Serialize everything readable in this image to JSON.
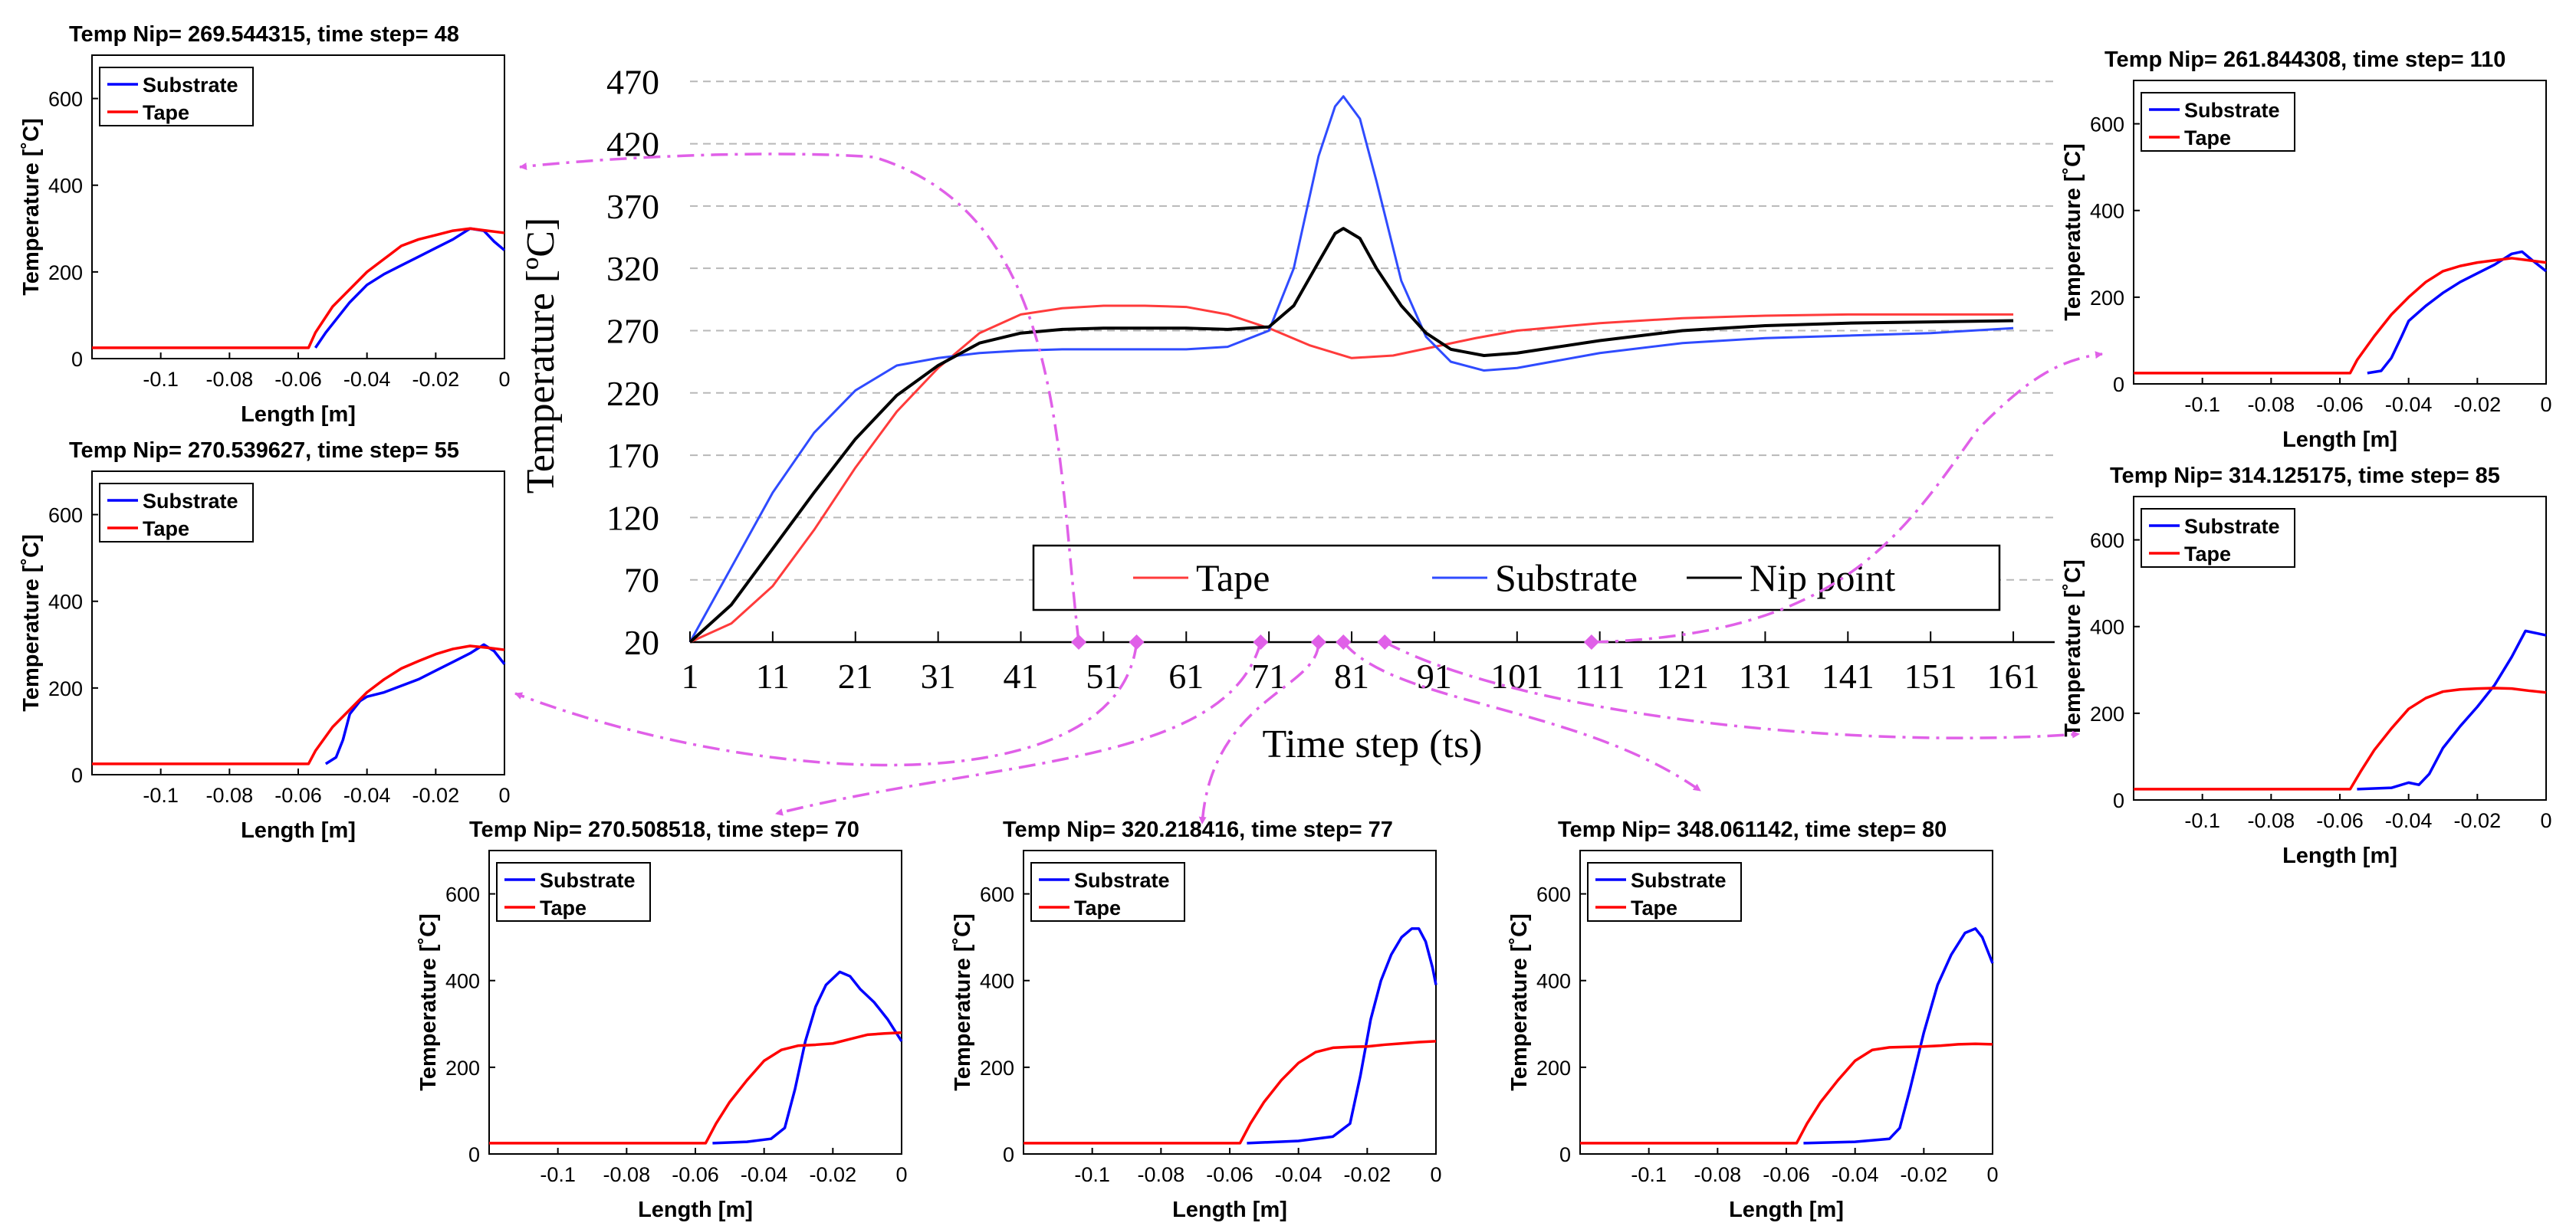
{
  "chart_data": [
    {
      "id": "main",
      "type": "line",
      "xlabel": "Time step (ts)",
      "ylabel": "Temperature [ºC]",
      "xlim": [
        1,
        166
      ],
      "ylim": [
        20,
        480
      ],
      "xticks": [
        1,
        11,
        21,
        31,
        41,
        51,
        61,
        71,
        81,
        91,
        101,
        111,
        121,
        131,
        141,
        151,
        161
      ],
      "yticks": [
        20,
        70,
        120,
        170,
        220,
        270,
        320,
        370,
        420,
        470
      ],
      "grid": "horizontal dashed",
      "legend": "bottom-center, single row",
      "series": [
        {
          "name": "Tape",
          "color": "#ff3b3b",
          "x": [
            1,
            6,
            11,
            16,
            21,
            26,
            31,
            36,
            41,
            46,
            51,
            56,
            61,
            66,
            71,
            76,
            81,
            86,
            91,
            96,
            101,
            111,
            121,
            131,
            141,
            151,
            161
          ],
          "y": [
            20,
            35,
            65,
            110,
            160,
            205,
            240,
            268,
            283,
            288,
            290,
            290,
            289,
            283,
            272,
            258,
            248,
            250,
            257,
            264,
            270,
            276,
            280,
            282,
            283,
            283,
            283
          ]
        },
        {
          "name": "Substrate",
          "color": "#2f4bff",
          "x": [
            1,
            6,
            11,
            16,
            21,
            26,
            31,
            36,
            41,
            46,
            51,
            56,
            61,
            66,
            71,
            74,
            77,
            79,
            80,
            82,
            84,
            87,
            90,
            93,
            97,
            101,
            111,
            121,
            131,
            141,
            151,
            161
          ],
          "y": [
            20,
            80,
            140,
            188,
            222,
            242,
            248,
            252,
            254,
            255,
            255,
            255,
            255,
            257,
            270,
            320,
            410,
            450,
            458,
            440,
            390,
            310,
            265,
            245,
            238,
            240,
            252,
            260,
            264,
            266,
            268,
            272
          ]
        },
        {
          "name": "Nip point",
          "color": "#000000",
          "x": [
            1,
            6,
            11,
            16,
            21,
            26,
            31,
            36,
            41,
            46,
            51,
            56,
            61,
            66,
            71,
            74,
            77,
            79,
            80,
            82,
            84,
            87,
            90,
            93,
            97,
            101,
            111,
            121,
            131,
            141,
            151,
            161
          ],
          "y": [
            20,
            50,
            95,
            140,
            183,
            218,
            242,
            260,
            268,
            271,
            272,
            272,
            272,
            271,
            273,
            290,
            325,
            348,
            352,
            344,
            320,
            290,
            268,
            255,
            250,
            252,
            262,
            270,
            274,
            276,
            277,
            278
          ]
        }
      ],
      "markers_x": [
        48,
        55,
        70,
        77,
        80,
        85,
        110
      ]
    },
    {
      "id": "ts48",
      "type": "line",
      "title": "Temp Nip= 269.544315, time step= 48",
      "xlabel": "Length [m]",
      "ylabel": "Temperature [˚C]",
      "xlim": [
        -0.12,
        0
      ],
      "ylim": [
        0,
        700
      ],
      "xticks": [
        -0.1,
        -0.08,
        -0.06,
        -0.04,
        -0.02,
        0
      ],
      "xticklabels": [
        "-0.1",
        "-0.08",
        "-0.06",
        "-0.04",
        "-0.02",
        "0"
      ],
      "yticks": [
        0,
        200,
        400,
        600
      ],
      "legend": "top-left",
      "series": [
        {
          "name": "Substrate",
          "color": "#0000ff",
          "x": [
            -0.055,
            -0.052,
            -0.048,
            -0.045,
            -0.04,
            -0.035,
            -0.03,
            -0.025,
            -0.02,
            -0.015,
            -0.01,
            -0.006,
            -0.003,
            0
          ],
          "y": [
            25,
            60,
            100,
            130,
            170,
            195,
            215,
            235,
            255,
            275,
            300,
            295,
            270,
            250
          ]
        },
        {
          "name": "Tape",
          "color": "#ff0000",
          "x": [
            -0.12,
            -0.057,
            -0.055,
            -0.05,
            -0.045,
            -0.04,
            -0.035,
            -0.03,
            -0.025,
            -0.02,
            -0.015,
            -0.01,
            -0.005,
            0
          ],
          "y": [
            25,
            25,
            60,
            120,
            160,
            200,
            230,
            260,
            275,
            285,
            295,
            300,
            295,
            290
          ]
        }
      ]
    },
    {
      "id": "ts55",
      "type": "line",
      "title": "Temp Nip= 270.539627, time step= 55",
      "xlabel": "Length [m]",
      "ylabel": "Temperature [˚C]",
      "xlim": [
        -0.12,
        0
      ],
      "ylim": [
        0,
        700
      ],
      "xticks": [
        -0.1,
        -0.08,
        -0.06,
        -0.04,
        -0.02,
        0
      ],
      "xticklabels": [
        "-0.1",
        "-0.08",
        "-0.06",
        "-0.04",
        "-0.02",
        "0"
      ],
      "yticks": [
        0,
        200,
        400,
        600
      ],
      "legend": "top-left",
      "series": [
        {
          "name": "Substrate",
          "color": "#0000ff",
          "x": [
            -0.052,
            -0.049,
            -0.047,
            -0.045,
            -0.042,
            -0.04,
            -0.035,
            -0.03,
            -0.025,
            -0.02,
            -0.015,
            -0.01,
            -0.006,
            -0.003,
            0
          ],
          "y": [
            25,
            40,
            80,
            140,
            170,
            180,
            190,
            205,
            220,
            240,
            260,
            280,
            300,
            285,
            255
          ]
        },
        {
          "name": "Tape",
          "color": "#ff0000",
          "x": [
            -0.12,
            -0.057,
            -0.055,
            -0.05,
            -0.045,
            -0.04,
            -0.035,
            -0.03,
            -0.025,
            -0.02,
            -0.015,
            -0.01,
            -0.005,
            0
          ],
          "y": [
            25,
            25,
            55,
            110,
            150,
            190,
            220,
            245,
            262,
            278,
            290,
            297,
            293,
            288
          ]
        }
      ]
    },
    {
      "id": "ts70",
      "type": "line",
      "title": "Temp Nip= 270.508518, time step= 70",
      "xlabel": "Length [m]",
      "ylabel": "Temperature [˚C]",
      "xlim": [
        -0.12,
        0
      ],
      "ylim": [
        0,
        700
      ],
      "xticks": [
        -0.1,
        -0.08,
        -0.06,
        -0.04,
        -0.02,
        0
      ],
      "xticklabels": [
        "-0.1",
        "-0.08",
        "-0.06",
        "-0.04",
        "-0.02",
        "0"
      ],
      "yticks": [
        0,
        200,
        400,
        600
      ],
      "legend": "top-left",
      "series": [
        {
          "name": "Substrate",
          "color": "#0000ff",
          "x": [
            -0.055,
            -0.045,
            -0.038,
            -0.034,
            -0.031,
            -0.028,
            -0.025,
            -0.022,
            -0.018,
            -0.015,
            -0.012,
            -0.008,
            -0.004,
            0
          ],
          "y": [
            25,
            28,
            35,
            60,
            150,
            260,
            340,
            390,
            420,
            410,
            380,
            350,
            310,
            260
          ]
        },
        {
          "name": "Tape",
          "color": "#ff0000",
          "x": [
            -0.12,
            -0.057,
            -0.054,
            -0.05,
            -0.045,
            -0.04,
            -0.035,
            -0.03,
            -0.025,
            -0.02,
            -0.015,
            -0.01,
            -0.005,
            0
          ],
          "y": [
            25,
            25,
            70,
            120,
            170,
            215,
            240,
            250,
            252,
            255,
            265,
            275,
            278,
            280
          ]
        }
      ]
    },
    {
      "id": "ts77",
      "type": "line",
      "title": "Temp Nip= 320.218416, time step= 77",
      "xlabel": "Length [m]",
      "ylabel": "Temperature [˚C]",
      "xlim": [
        -0.12,
        0
      ],
      "ylim": [
        0,
        700
      ],
      "xticks": [
        -0.1,
        -0.08,
        -0.06,
        -0.04,
        -0.02,
        0
      ],
      "xticklabels": [
        "-0.1",
        "-0.08",
        "-0.06",
        "-0.04",
        "-0.02",
        "0"
      ],
      "yticks": [
        0,
        200,
        400,
        600
      ],
      "legend": "top-left",
      "series": [
        {
          "name": "Substrate",
          "color": "#0000ff",
          "x": [
            -0.055,
            -0.04,
            -0.03,
            -0.025,
            -0.022,
            -0.019,
            -0.016,
            -0.013,
            -0.01,
            -0.007,
            -0.005,
            -0.003,
            -0.001,
            0
          ],
          "y": [
            25,
            30,
            40,
            70,
            180,
            310,
            400,
            460,
            500,
            520,
            520,
            490,
            430,
            390
          ]
        },
        {
          "name": "Tape",
          "color": "#ff0000",
          "x": [
            -0.12,
            -0.057,
            -0.054,
            -0.05,
            -0.045,
            -0.04,
            -0.035,
            -0.03,
            -0.025,
            -0.02,
            -0.015,
            -0.01,
            -0.005,
            0
          ],
          "y": [
            25,
            25,
            70,
            120,
            170,
            210,
            235,
            245,
            247,
            248,
            252,
            255,
            258,
            260
          ]
        }
      ]
    },
    {
      "id": "ts80",
      "type": "line",
      "title": "Temp Nip= 348.061142, time step= 80",
      "xlabel": "Length [m]",
      "ylabel": "Temperature [˚C]",
      "xlim": [
        -0.12,
        0
      ],
      "ylim": [
        0,
        700
      ],
      "xticks": [
        -0.1,
        -0.08,
        -0.06,
        -0.04,
        -0.02,
        0
      ],
      "xticklabels": [
        "-0.1",
        "-0.08",
        "-0.06",
        "-0.04",
        "-0.02",
        "0"
      ],
      "yticks": [
        0,
        200,
        400,
        600
      ],
      "legend": "top-left",
      "series": [
        {
          "name": "Substrate",
          "color": "#0000ff",
          "x": [
            -0.055,
            -0.04,
            -0.03,
            -0.027,
            -0.024,
            -0.02,
            -0.016,
            -0.012,
            -0.008,
            -0.005,
            -0.003,
            -0.001,
            0
          ],
          "y": [
            25,
            28,
            35,
            60,
            150,
            280,
            390,
            460,
            510,
            520,
            500,
            460,
            440
          ]
        },
        {
          "name": "Tape",
          "color": "#ff0000",
          "x": [
            -0.12,
            -0.057,
            -0.054,
            -0.05,
            -0.045,
            -0.04,
            -0.035,
            -0.03,
            -0.025,
            -0.02,
            -0.015,
            -0.01,
            -0.005,
            0
          ],
          "y": [
            25,
            25,
            70,
            120,
            170,
            215,
            240,
            246,
            247,
            248,
            250,
            253,
            254,
            253
          ]
        }
      ]
    },
    {
      "id": "ts110",
      "type": "line",
      "title": "Temp Nip= 261.844308, time step= 110",
      "xlabel": "Length [m]",
      "ylabel": "Temperature [˚C]",
      "xlim": [
        -0.12,
        0
      ],
      "ylim": [
        0,
        700
      ],
      "xticks": [
        -0.1,
        -0.08,
        -0.06,
        -0.04,
        -0.02,
        0
      ],
      "xticklabels": [
        "-0.1",
        "-0.08",
        "-0.06",
        "-0.04",
        "-0.02",
        "0"
      ],
      "yticks": [
        0,
        200,
        400,
        600
      ],
      "legend": "top-left",
      "series": [
        {
          "name": "Substrate",
          "color": "#0000ff",
          "x": [
            -0.052,
            -0.048,
            -0.045,
            -0.042,
            -0.04,
            -0.035,
            -0.03,
            -0.025,
            -0.02,
            -0.015,
            -0.01,
            -0.007,
            -0.004,
            0
          ],
          "y": [
            25,
            30,
            60,
            110,
            145,
            180,
            210,
            235,
            255,
            275,
            300,
            305,
            285,
            260
          ]
        },
        {
          "name": "Tape",
          "color": "#ff0000",
          "x": [
            -0.12,
            -0.057,
            -0.055,
            -0.05,
            -0.045,
            -0.04,
            -0.035,
            -0.03,
            -0.025,
            -0.02,
            -0.015,
            -0.01,
            -0.005,
            0
          ],
          "y": [
            25,
            25,
            55,
            110,
            160,
            200,
            235,
            260,
            272,
            280,
            285,
            290,
            285,
            280
          ]
        }
      ]
    },
    {
      "id": "ts85",
      "type": "line",
      "title": "Temp Nip= 314.125175, time step= 85",
      "xlabel": "Length [m]",
      "ylabel": "Temperature [˚C]",
      "xlim": [
        -0.12,
        0
      ],
      "ylim": [
        0,
        700
      ],
      "xticks": [
        -0.1,
        -0.08,
        -0.06,
        -0.04,
        -0.02,
        0
      ],
      "xticklabels": [
        "-0.1",
        "-0.08",
        "-0.06",
        "-0.04",
        "-0.02",
        "0"
      ],
      "yticks": [
        0,
        200,
        400,
        600
      ],
      "legend": "top-left",
      "series": [
        {
          "name": "Substrate",
          "color": "#0000ff",
          "x": [
            -0.055,
            -0.045,
            -0.04,
            -0.037,
            -0.034,
            -0.03,
            -0.025,
            -0.02,
            -0.015,
            -0.01,
            -0.006,
            -0.003,
            0
          ],
          "y": [
            25,
            28,
            40,
            35,
            60,
            120,
            170,
            215,
            265,
            330,
            390,
            385,
            380
          ]
        },
        {
          "name": "Tape",
          "color": "#ff0000",
          "x": [
            -0.12,
            -0.057,
            -0.054,
            -0.05,
            -0.045,
            -0.04,
            -0.035,
            -0.03,
            -0.025,
            -0.02,
            -0.015,
            -0.01,
            -0.005,
            0
          ],
          "y": [
            25,
            25,
            65,
            115,
            165,
            210,
            235,
            250,
            255,
            257,
            258,
            257,
            252,
            248
          ]
        }
      ]
    }
  ]
}
